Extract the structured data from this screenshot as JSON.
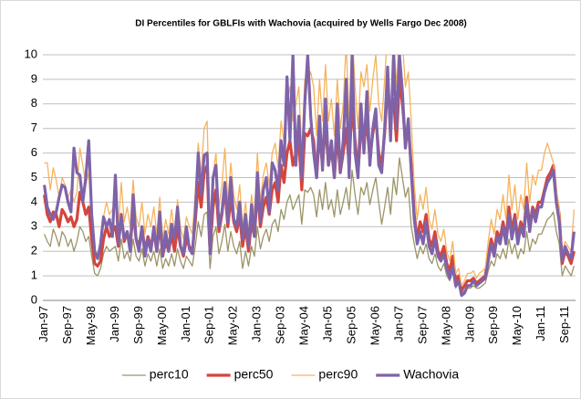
{
  "chart_data": {
    "type": "line",
    "title": "DI Percentiles for GBLFIs with Wachovia (acquired by Wells Fargo Dec 2008)",
    "categories": [
      "Jan-97",
      null,
      null,
      null,
      null,
      null,
      null,
      null,
      "Sep-97",
      null,
      null,
      null,
      null,
      null,
      null,
      null,
      "May-98",
      null,
      null,
      null,
      null,
      null,
      null,
      null,
      "Jan-99",
      null,
      null,
      null,
      null,
      null,
      null,
      null,
      "Sep-99",
      null,
      null,
      null,
      null,
      null,
      null,
      null,
      "May-00",
      null,
      null,
      null,
      null,
      null,
      null,
      null,
      "Jan-01",
      null,
      null,
      null,
      null,
      null,
      null,
      null,
      "Sep-01",
      null,
      null,
      null,
      null,
      null,
      null,
      null,
      "May-02",
      null,
      null,
      null,
      null,
      null,
      null,
      null,
      "Jan-03",
      null,
      null,
      null,
      null,
      null,
      null,
      null,
      "Sep-03",
      null,
      null,
      null,
      null,
      null,
      null,
      null,
      "May-04",
      null,
      null,
      null,
      null,
      null,
      null,
      null,
      "Jan-05",
      null,
      null,
      null,
      null,
      null,
      null,
      null,
      "Sep-05",
      null,
      null,
      null,
      null,
      null,
      null,
      null,
      "May-06",
      null,
      null,
      null,
      null,
      null,
      null,
      null,
      "Jan-07",
      null,
      null,
      null,
      null,
      null,
      null,
      null,
      "Sep-07",
      null,
      null,
      null,
      null,
      null,
      null,
      null,
      "May-08",
      null,
      null,
      null,
      null,
      null,
      null,
      null,
      "Jan-09",
      null,
      null,
      null,
      null,
      null,
      null,
      null,
      "Sep-09",
      null,
      null,
      null,
      null,
      null,
      null,
      null,
      "May-10",
      null,
      null,
      null,
      null,
      null,
      null,
      null,
      "Jan-11",
      null,
      null,
      null,
      null,
      null,
      null,
      null,
      "Sep-11",
      null,
      null,
      null
    ],
    "series": [
      {
        "name": "perc10",
        "color": "#9c9468",
        "values": [
          2.7,
          2.4,
          2.2,
          2.9,
          2.6,
          2.2,
          2.8,
          2.6,
          2.2,
          2.5,
          2.0,
          2.4,
          3.0,
          2.8,
          2.4,
          2.6,
          1.8,
          1.1,
          1.0,
          1.3,
          1.9,
          2.2,
          2.0,
          2.1,
          2.2,
          1.6,
          2.5,
          1.7,
          2.0,
          1.6,
          2.5,
          1.8,
          1.6,
          2.1,
          1.4,
          1.9,
          1.6,
          2.0,
          1.4,
          2.1,
          1.3,
          1.7,
          1.4,
          1.9,
          1.4,
          2.1,
          1.6,
          1.3,
          1.8,
          1.6,
          1.4,
          2.2,
          3.2,
          2.6,
          3.5,
          3.6,
          1.3,
          2.6,
          3.0,
          1.9,
          2.4,
          3.1,
          2.0,
          2.8,
          2.2,
          1.9,
          2.4,
          1.3,
          2.0,
          1.4,
          2.2,
          1.8,
          3.0,
          2.1,
          2.6,
          2.9,
          2.4,
          3.1,
          3.3,
          2.8,
          3.7,
          3.3,
          4.0,
          4.3,
          3.7,
          4.0,
          4.3,
          3.1,
          4.5,
          4.4,
          4.6,
          4.3,
          3.4,
          4.5,
          3.7,
          4.8,
          3.7,
          4.1,
          3.4,
          4.5,
          3.5,
          4.0,
          4.6,
          3.7,
          5.3,
          4.3,
          3.5,
          4.6,
          4.3,
          4.8,
          3.9,
          4.5,
          5.0,
          4.0,
          3.1,
          3.8,
          4.6,
          3.5,
          5.0,
          4.3,
          5.8,
          5.0,
          4.2,
          4.6,
          3.0,
          2.3,
          1.7,
          2.2,
          1.9,
          2.3,
          1.7,
          1.5,
          1.9,
          1.4,
          1.2,
          1.5,
          1.0,
          0.8,
          1.2,
          0.5,
          0.7,
          0.3,
          0.4,
          0.5,
          0.5,
          0.6,
          0.5,
          0.5,
          0.6,
          0.7,
          1.2,
          1.6,
          1.4,
          1.9,
          1.7,
          2.1,
          1.7,
          2.5,
          1.9,
          2.3,
          1.7,
          2.1,
          1.9,
          2.8,
          2.0,
          2.5,
          2.3,
          2.7,
          2.7,
          3.0,
          3.3,
          3.4,
          3.6,
          2.8,
          2.3,
          1.0,
          1.4,
          1.2,
          1.0,
          1.4
        ]
      },
      {
        "name": "perc50",
        "color": "#d4453c",
        "values": [
          4.3,
          3.5,
          3.2,
          3.6,
          3.5,
          3.0,
          3.7,
          3.5,
          3.2,
          3.4,
          3.0,
          3.3,
          4.4,
          4.0,
          3.5,
          3.8,
          2.5,
          1.5,
          1.4,
          1.6,
          2.5,
          3.0,
          2.6,
          2.8,
          3.0,
          2.2,
          3.5,
          2.4,
          2.8,
          2.2,
          3.6,
          2.5,
          2.2,
          3.0,
          2.0,
          2.6,
          2.2,
          2.8,
          2.0,
          3.1,
          1.8,
          2.4,
          2.0,
          2.7,
          2.0,
          3.0,
          2.2,
          1.8,
          2.5,
          2.2,
          2.0,
          3.2,
          4.8,
          3.8,
          5.2,
          5.5,
          2.0,
          3.8,
          4.5,
          2.8,
          3.5,
          4.6,
          3.0,
          4.2,
          3.2,
          2.8,
          3.5,
          2.2,
          3.0,
          2.0,
          3.2,
          2.6,
          4.5,
          3.0,
          3.8,
          4.2,
          3.5,
          4.5,
          4.8,
          4.0,
          5.5,
          4.8,
          6.0,
          6.5,
          5.5,
          6.0,
          6.5,
          4.5,
          6.8,
          6.7,
          7.0,
          6.5,
          5.0,
          6.8,
          5.5,
          7.2,
          5.5,
          6.2,
          5.0,
          6.8,
          5.2,
          6.0,
          7.0,
          5.5,
          8.0,
          6.5,
          5.2,
          7.0,
          6.5,
          7.2,
          5.8,
          6.8,
          7.5,
          6.0,
          5.5,
          6.8,
          8.8,
          7.5,
          8.2,
          6.5,
          9.0,
          8.0,
          6.5,
          7.0,
          5.5,
          3.5,
          2.5,
          3.2,
          2.8,
          3.5,
          2.5,
          2.2,
          2.8,
          2.0,
          1.8,
          2.2,
          1.5,
          1.2,
          1.8,
          0.8,
          1.0,
          0.4,
          0.6,
          0.8,
          0.8,
          0.9,
          0.7,
          0.8,
          0.9,
          1.0,
          1.8,
          2.5,
          2.0,
          2.8,
          2.5,
          3.2,
          2.5,
          3.8,
          2.8,
          3.5,
          2.5,
          3.2,
          2.8,
          4.2,
          3.0,
          3.8,
          3.5,
          4.0,
          4.0,
          4.5,
          5.0,
          5.2,
          5.5,
          4.2,
          3.5,
          1.5,
          2.0,
          1.8,
          1.5,
          2.0
        ]
      },
      {
        "name": "perc90",
        "color": "#f6b35e",
        "values": [
          5.6,
          5.6,
          4.5,
          5.4,
          4.9,
          4.2,
          5.0,
          4.7,
          4.2,
          4.5,
          4.0,
          4.4,
          6.2,
          5.5,
          4.7,
          5.2,
          3.4,
          2.0,
          1.9,
          2.2,
          3.4,
          4.0,
          3.5,
          3.7,
          4.0,
          3.0,
          4.8,
          3.2,
          3.8,
          3.0,
          4.9,
          3.4,
          3.0,
          4.0,
          2.7,
          3.5,
          3.0,
          3.8,
          2.7,
          4.2,
          2.5,
          3.3,
          2.7,
          3.7,
          2.7,
          4.1,
          3.0,
          2.5,
          3.4,
          3.0,
          2.7,
          4.4,
          6.4,
          5.1,
          7.0,
          7.3,
          2.7,
          5.1,
          6.0,
          3.8,
          4.7,
          6.2,
          4.0,
          5.6,
          4.3,
          3.7,
          4.7,
          3.0,
          4.0,
          2.7,
          4.3,
          3.5,
          6.0,
          4.0,
          5.1,
          5.6,
          4.7,
          6.0,
          6.4,
          5.4,
          7.3,
          6.4,
          8.0,
          8.7,
          7.3,
          8.0,
          8.7,
          6.0,
          9.0,
          8.9,
          9.3,
          8.7,
          6.7,
          9.0,
          7.3,
          9.6,
          7.3,
          8.2,
          6.7,
          9.0,
          7.0,
          8.0,
          10.5,
          7.3,
          11.0,
          8.7,
          7.0,
          9.3,
          8.7,
          9.6,
          7.7,
          9.0,
          10.0,
          8.0,
          7.3,
          9.0,
          11.0,
          10.0,
          11.0,
          8.7,
          11.0,
          10.6,
          8.7,
          9.3,
          7.3,
          4.7,
          3.3,
          4.3,
          3.7,
          4.6,
          3.3,
          2.9,
          3.7,
          2.7,
          2.4,
          2.9,
          2.0,
          1.6,
          2.4,
          1.1,
          1.3,
          0.6,
          0.8,
          1.1,
          1.1,
          1.2,
          0.9,
          1.1,
          1.2,
          1.3,
          2.4,
          3.3,
          2.7,
          3.7,
          3.3,
          4.3,
          3.3,
          5.1,
          3.7,
          4.7,
          3.3,
          4.3,
          3.7,
          5.6,
          4.0,
          5.1,
          4.7,
          5.3,
          5.3,
          6.0,
          6.4,
          6.0,
          5.6,
          4.5,
          3.8,
          2.0,
          2.4,
          2.2,
          2.0,
          3.7
        ]
      },
      {
        "name": "Wachovia",
        "color": "#7f63a8",
        "values": [
          4.7,
          3.8,
          3.5,
          3.3,
          3.6,
          4.2,
          4.7,
          4.6,
          4.0,
          3.6,
          6.2,
          5.2,
          5.1,
          4.0,
          5.0,
          6.5,
          3.5,
          2.0,
          1.7,
          2.3,
          3.4,
          3.0,
          3.3,
          2.6,
          5.1,
          2.3,
          3.4,
          2.5,
          2.8,
          2.0,
          4.3,
          2.5,
          2.0,
          3.0,
          1.8,
          2.5,
          2.0,
          3.0,
          2.0,
          3.6,
          1.8,
          2.8,
          2.0,
          3.1,
          2.5,
          3.8,
          2.2,
          1.9,
          3.0,
          2.1,
          1.9,
          3.5,
          6.0,
          4.3,
          5.9,
          6.0,
          1.9,
          5.0,
          5.5,
          3.0,
          3.6,
          4.8,
          3.2,
          5.0,
          3.3,
          3.0,
          4.0,
          2.5,
          3.5,
          2.2,
          3.9,
          2.6,
          5.2,
          3.2,
          4.5,
          5.0,
          3.6,
          5.6,
          5.3,
          4.5,
          6.5,
          5.5,
          9.1,
          6.5,
          10.0,
          5.5,
          7.5,
          5.0,
          8.0,
          10.0,
          7.5,
          6.0,
          5.0,
          7.5,
          5.3,
          8.2,
          5.5,
          6.5,
          5.0,
          8.0,
          5.2,
          6.5,
          9.0,
          5.0,
          10.0,
          6.0,
          5.0,
          8.0,
          6.0,
          8.5,
          5.5,
          7.0,
          7.8,
          5.5,
          5.2,
          7.0,
          9.5,
          6.5,
          10.0,
          7.0,
          10.0,
          8.5,
          6.2,
          7.4,
          5.2,
          3.3,
          2.3,
          2.8,
          2.3,
          3.2,
          2.2,
          1.9,
          2.5,
          1.8,
          1.6,
          1.9,
          1.3,
          0.9,
          1.4,
          0.6,
          0.8,
          0.2,
          0.3,
          0.6,
          0.6,
          0.8,
          0.6,
          0.7,
          0.8,
          0.9,
          1.6,
          2.3,
          1.8,
          2.6,
          2.3,
          3.0,
          2.3,
          3.5,
          2.5,
          3.3,
          2.3,
          3.0,
          2.6,
          4.0,
          2.8,
          3.7,
          3.2,
          3.8,
          3.8,
          4.4,
          4.8,
          5.0,
          5.3,
          4.0,
          3.2,
          1.6,
          2.2,
          1.9,
          1.7,
          2.8
        ]
      }
    ],
    "ylim": [
      0,
      10
    ],
    "yticks": [
      0,
      1,
      2,
      3,
      4,
      5,
      6,
      7,
      8,
      9,
      10
    ],
    "grid": true,
    "legend": "bottom"
  }
}
